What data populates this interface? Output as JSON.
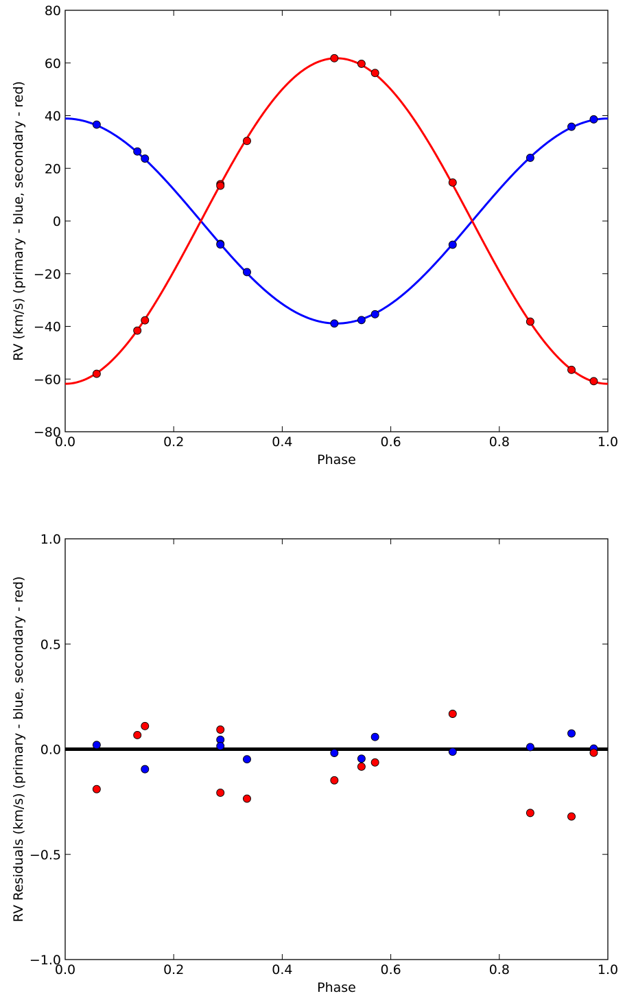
{
  "chart_data": [
    {
      "type": "scatter",
      "title": "",
      "xlabel": "Phase",
      "ylabel": "RV (km/s) (primary - blue, secondary - red)",
      "xlim": [
        0.0,
        1.0
      ],
      "ylim": [
        -80,
        80
      ],
      "xticks": [
        "0.0",
        "0.2",
        "0.4",
        "0.6",
        "0.8",
        "1.0"
      ],
      "yticks": [
        "80",
        "60",
        "40",
        "20",
        "0",
        "−20",
        "−40",
        "−60",
        "−80"
      ],
      "legend": "none",
      "grid": false,
      "model_curves": [
        {
          "color": "#0000ff",
          "amplitude": 38.9,
          "vsys": 0.0,
          "form": "v = vsys + K*cos(2*pi*phase)"
        },
        {
          "color": "#ff0000",
          "amplitude": -61.8,
          "vsys": 0.0,
          "form": "v = vsys + K*cos(2*pi*phase)"
        }
      ],
      "series": [
        {
          "color": "#0000ff",
          "points": [
            [
              0.058,
              36.6
            ],
            [
              0.133,
              26.4
            ],
            [
              0.147,
              23.7
            ],
            [
              0.286,
              -8.7
            ],
            [
              0.286,
              -8.9
            ],
            [
              0.335,
              -19.4
            ],
            [
              0.496,
              -38.9
            ],
            [
              0.546,
              -37.6
            ],
            [
              0.571,
              -35.4
            ],
            [
              0.714,
              -9.0
            ],
            [
              0.857,
              24.0
            ],
            [
              0.933,
              35.8
            ],
            [
              0.974,
              38.6
            ]
          ]
        },
        {
          "color": "#ff0000",
          "points": [
            [
              0.058,
              -58.0
            ],
            [
              0.133,
              -41.6
            ],
            [
              0.147,
              -37.7
            ],
            [
              0.286,
              14.0
            ],
            [
              0.286,
              13.4
            ],
            [
              0.335,
              30.4
            ],
            [
              0.496,
              61.8
            ],
            [
              0.546,
              59.7
            ],
            [
              0.571,
              56.2
            ],
            [
              0.714,
              14.6
            ],
            [
              0.857,
              -38.2
            ],
            [
              0.933,
              -56.5
            ],
            [
              0.974,
              -60.8
            ]
          ]
        }
      ]
    },
    {
      "type": "scatter",
      "title": "",
      "xlabel": "Phase",
      "ylabel": "RV Residuals (km/s) (primary - blue, secondary - red)",
      "xlim": [
        0.0,
        1.0
      ],
      "ylim": [
        -1.0,
        1.0
      ],
      "xticks": [
        "0.0",
        "0.2",
        "0.4",
        "0.6",
        "0.8",
        "1.0"
      ],
      "yticks": [
        "1.0",
        "0.5",
        "0.0",
        "−0.5",
        "−1.0"
      ],
      "legend": "none",
      "grid": false,
      "reference_line": {
        "y": 0.0,
        "color": "#000000"
      },
      "series": [
        {
          "color": "#0000ff",
          "points": [
            [
              0.058,
              0.02
            ],
            [
              0.147,
              -0.095
            ],
            [
              0.286,
              0.045
            ],
            [
              0.286,
              0.015
            ],
            [
              0.335,
              -0.048
            ],
            [
              0.496,
              -0.018
            ],
            [
              0.546,
              -0.045
            ],
            [
              0.571,
              0.058
            ],
            [
              0.714,
              -0.012
            ],
            [
              0.857,
              0.01
            ],
            [
              0.933,
              0.075
            ],
            [
              0.974,
              0.003
            ]
          ]
        },
        {
          "color": "#ff0000",
          "points": [
            [
              0.058,
              -0.19
            ],
            [
              0.133,
              0.067
            ],
            [
              0.147,
              0.11
            ],
            [
              0.286,
              0.093
            ],
            [
              0.286,
              -0.207
            ],
            [
              0.335,
              -0.235
            ],
            [
              0.496,
              -0.148
            ],
            [
              0.546,
              -0.083
            ],
            [
              0.571,
              -0.063
            ],
            [
              0.714,
              0.168
            ],
            [
              0.857,
              -0.303
            ],
            [
              0.933,
              -0.32
            ],
            [
              0.974,
              -0.017
            ]
          ]
        }
      ]
    }
  ]
}
